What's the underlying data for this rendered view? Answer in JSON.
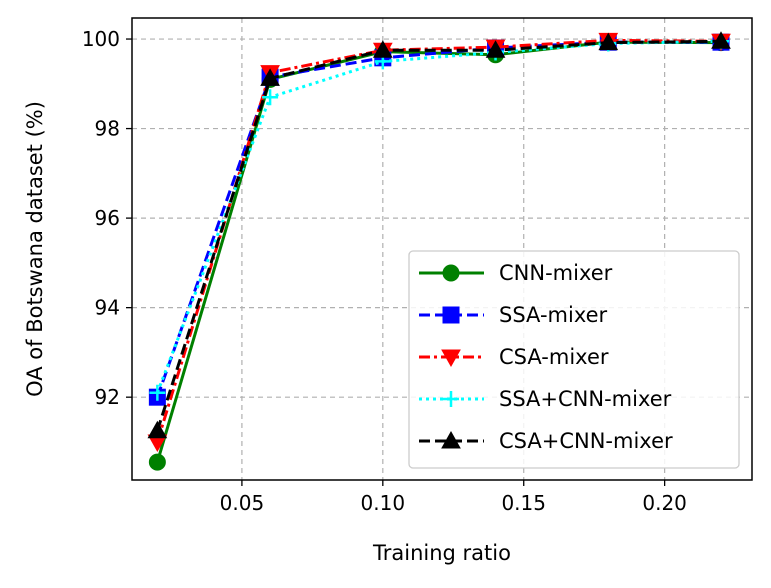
{
  "chart_data": {
    "type": "line",
    "title": "",
    "xlabel": "Training ratio",
    "ylabel": "OA of Botswana dataset (%)",
    "xlim": [
      0.011,
      0.231
    ],
    "ylim": [
      90.15,
      100.47
    ],
    "xticks": [
      0.05,
      0.1,
      0.15,
      0.2
    ],
    "xtick_labels": [
      "0.05",
      "0.10",
      "0.15",
      "0.20"
    ],
    "yticks": [
      92,
      94,
      96,
      98,
      100
    ],
    "ytick_labels": [
      "92",
      "94",
      "96",
      "98",
      "100"
    ],
    "grid": true,
    "legend_position": "lower-right",
    "x": [
      0.02,
      0.06,
      0.1,
      0.14,
      0.18,
      0.22
    ],
    "series": [
      {
        "name": "CNN-mixer",
        "values": [
          90.55,
          99.1,
          99.72,
          99.65,
          99.93,
          99.92
        ],
        "color": "#008000",
        "marker": "circle",
        "linestyle": "solid"
      },
      {
        "name": "SSA-mixer",
        "values": [
          92.0,
          99.15,
          99.58,
          99.8,
          99.93,
          99.93
        ],
        "color": "#0000ff",
        "marker": "square",
        "linestyle": "dashed"
      },
      {
        "name": "CSA-mixer",
        "values": [
          91.0,
          99.25,
          99.75,
          99.82,
          99.97,
          99.95
        ],
        "color": "#ff0000",
        "marker": "triangle-down",
        "linestyle": "dashdot"
      },
      {
        "name": "SSA+CNN-mixer",
        "values": [
          92.1,
          98.7,
          99.5,
          99.7,
          99.9,
          99.95
        ],
        "color": "#00ffff",
        "marker": "plus",
        "linestyle": "dotted"
      },
      {
        "name": "CSA+CNN-mixer",
        "values": [
          91.25,
          99.12,
          99.75,
          99.75,
          99.92,
          99.95
        ],
        "color": "#000000",
        "marker": "triangle-up",
        "linestyle": "dashed"
      }
    ]
  }
}
